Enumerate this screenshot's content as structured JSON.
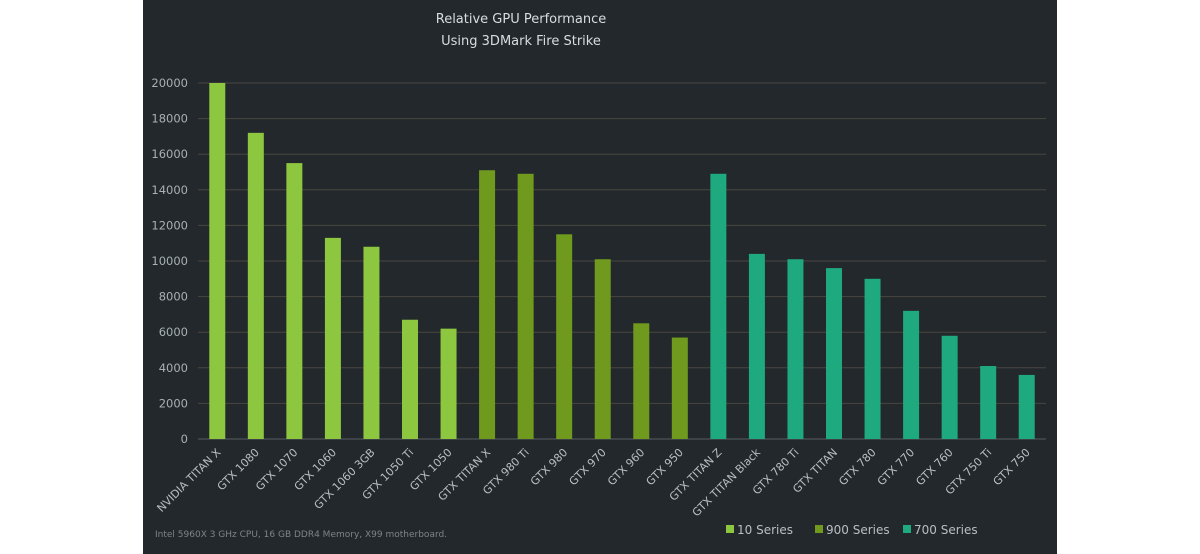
{
  "chart_data": {
    "type": "bar",
    "title": "Relative GPU Performance",
    "subtitle": "Using 3DMark Fire Strike",
    "footnote": "Intel 5960X 3 GHz CPU, 16 GB DDR4 Memory, X99 motherboard.",
    "ylim": [
      0,
      20000
    ],
    "yticks": [
      0,
      2000,
      4000,
      6000,
      8000,
      10000,
      12000,
      14000,
      16000,
      18000,
      20000
    ],
    "grid": true,
    "legend_position": "bottom-right",
    "series": [
      {
        "name": "10 Series",
        "color": "#8dc63f",
        "categories": [
          "NVIDIA TITAN X",
          "GTX 1080",
          "GTX 1070",
          "GTX 1060",
          "GTX 1060 3GB",
          "GTX 1050 Ti",
          "GTX 1050"
        ],
        "values": [
          20000,
          17200,
          15500,
          11300,
          10800,
          6700,
          6200
        ]
      },
      {
        "name": "900 Series",
        "color": "#6f9a1e",
        "categories": [
          "GTX TITAN X",
          "GTX 980 Ti",
          "GTX 980",
          "GTX 970",
          "GTX 960",
          "GTX 950"
        ],
        "values": [
          15100,
          14900,
          11500,
          10100,
          6500,
          5700
        ]
      },
      {
        "name": "700 Series",
        "color": "#1fa97e",
        "categories": [
          "GTX TITAN Z",
          "GTX TITAN Black",
          "GTX 780 Ti",
          "GTX TITAN",
          "GTX 780",
          "GTX 770",
          "GTX 760",
          "GTX 750 Ti",
          "GTX 750"
        ],
        "values": [
          14900,
          10400,
          10100,
          9600,
          9000,
          7200,
          5800,
          4100,
          3600
        ]
      }
    ]
  }
}
